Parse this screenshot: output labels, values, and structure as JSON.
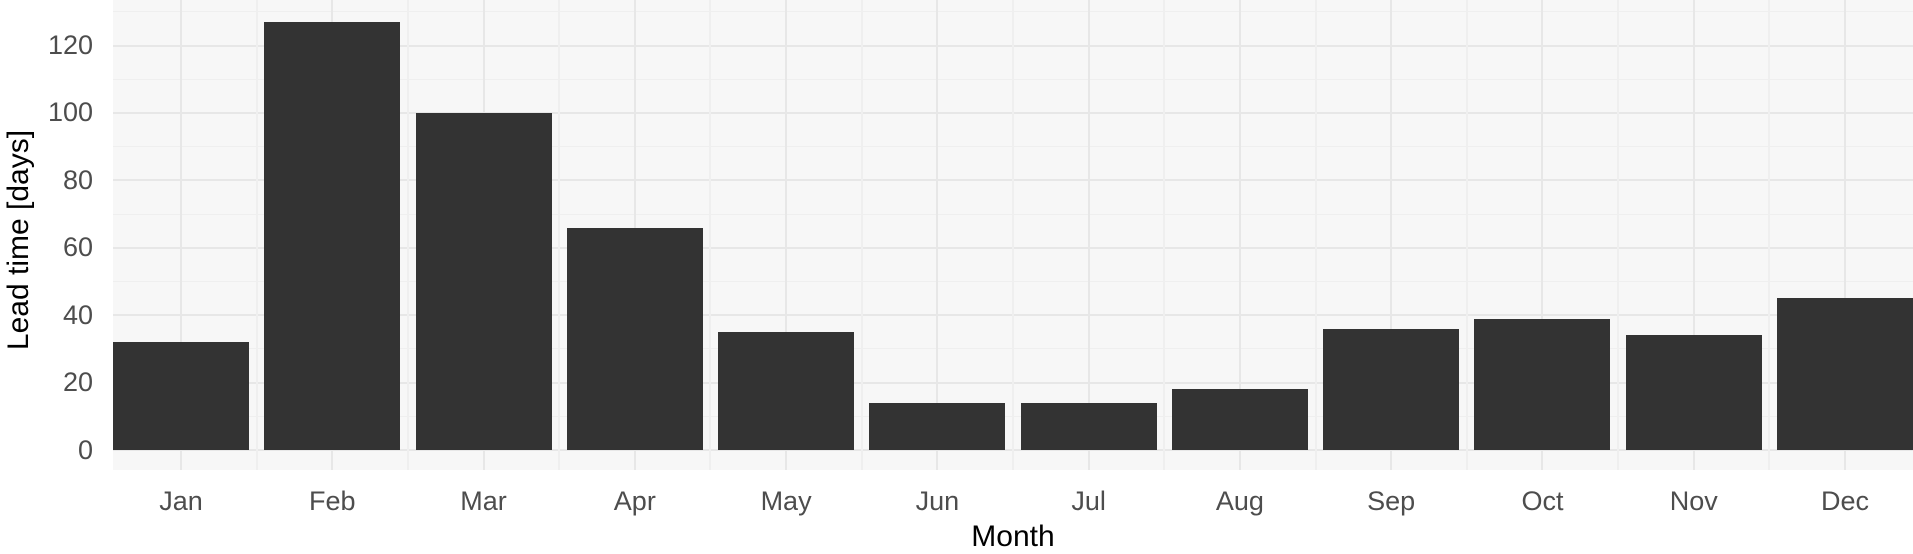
{
  "chart_data": {
    "type": "bar",
    "title": "",
    "categories": [
      "Jan",
      "Feb",
      "Mar",
      "Apr",
      "May",
      "Jun",
      "Jul",
      "Aug",
      "Sep",
      "Oct",
      "Nov",
      "Dec"
    ],
    "values": [
      32,
      127,
      100,
      66,
      35,
      14,
      14,
      18,
      36,
      39,
      34,
      45
    ],
    "xlabel": "Month",
    "ylabel": "Lead time [days]",
    "y_major_ticks": [
      0,
      20,
      40,
      60,
      80,
      100,
      120
    ],
    "y_minor_step": 10,
    "ylim": [
      0,
      133.5
    ],
    "grid": "major and minor, horizontal and vertical",
    "legend_position": "none",
    "bar_color": "#333333",
    "panel_background": "#F7F7F7",
    "grid_major_color": "#E7E7E7",
    "grid_minor_color": "#EFEFEF",
    "axis_text_color": "#4D4D4D",
    "axis_title_color": "#000000",
    "page_background": "#FFFFFF"
  }
}
